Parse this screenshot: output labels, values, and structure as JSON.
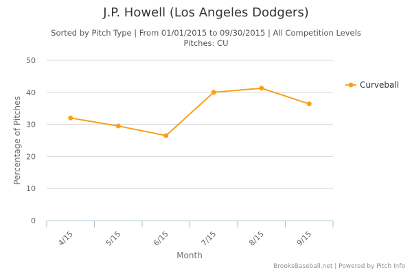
{
  "header": {
    "title": "J.P. Howell (Los Angeles Dodgers)",
    "subtitle_line1": "Sorted by Pitch Type | From 01/01/2015 to 09/30/2015 | All Competition Levels",
    "subtitle_line2": "Pitches: CU"
  },
  "credit": "BrooksBaseball.net | Powered by Pitch Info",
  "colors": {
    "series": "#f7a11a",
    "grid": "#d8d8d8",
    "axis": "#a7bfd0"
  },
  "chart_data": {
    "type": "line",
    "title": "J.P. Howell (Los Angeles Dodgers)",
    "xlabel": "Month",
    "ylabel": "Percentage of Pitches",
    "categories": [
      "4/15",
      "5/15",
      "6/15",
      "7/15",
      "8/15",
      "9/15"
    ],
    "ylim": [
      0,
      50
    ],
    "yticks": [
      "0",
      "10",
      "20",
      "30",
      "40",
      "50"
    ],
    "grid": true,
    "legend_position": "right",
    "series": [
      {
        "name": "Curveball",
        "values": [
          32.0,
          29.5,
          26.5,
          40.0,
          41.3,
          36.4
        ]
      }
    ]
  }
}
